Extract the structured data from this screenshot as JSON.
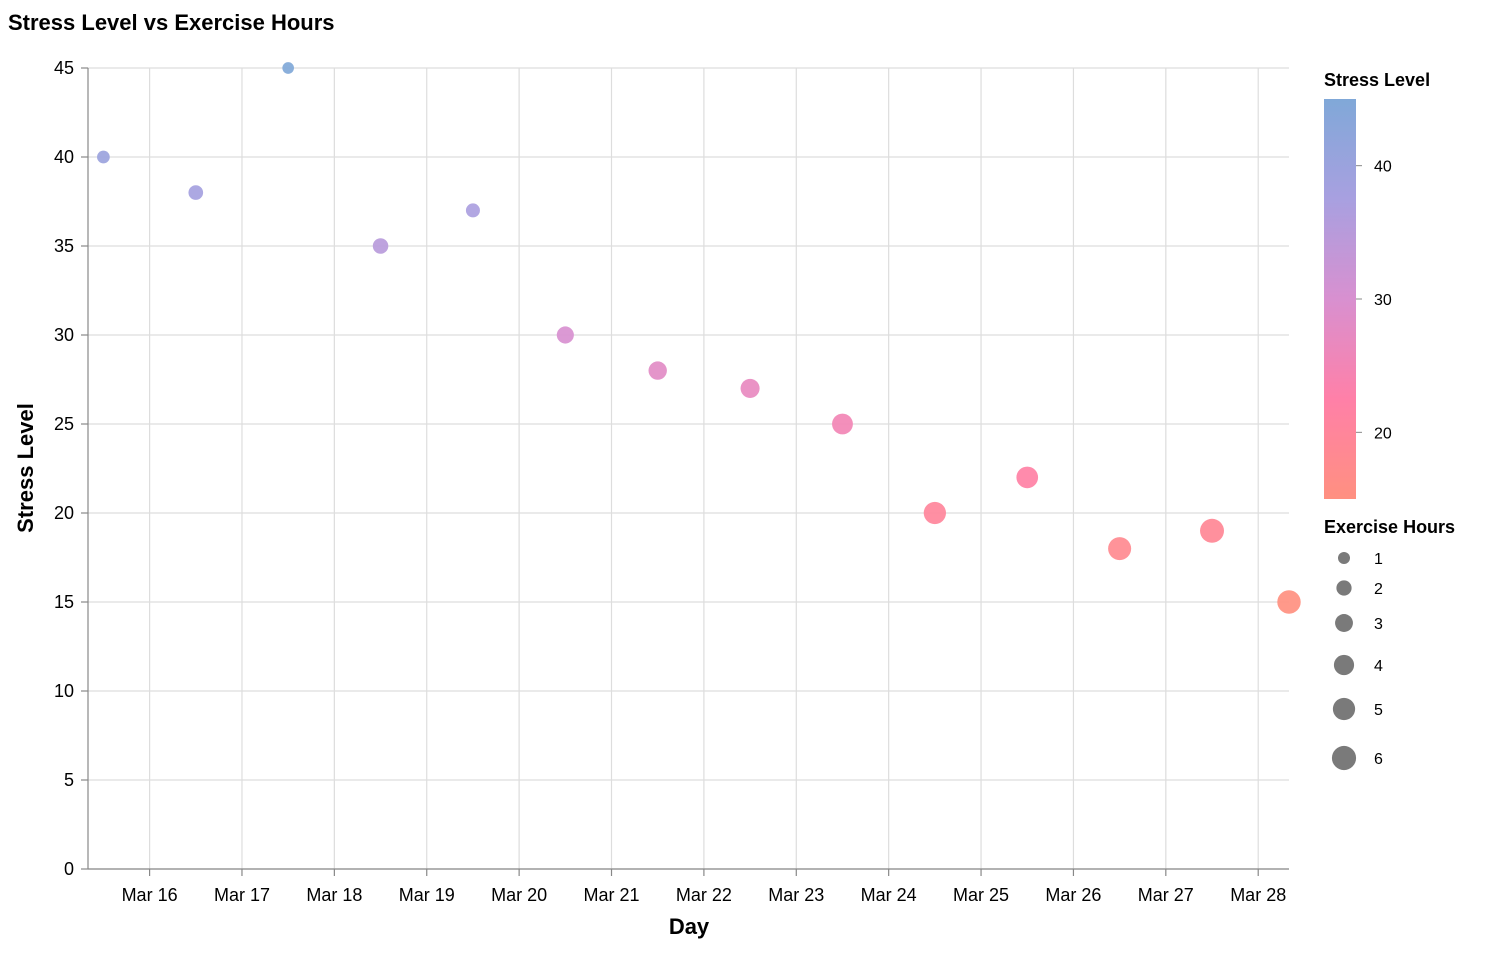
{
  "chart_data": {
    "type": "scatter",
    "title": "Stress Level vs Exercise Hours",
    "xlabel": "Day",
    "ylabel": "Stress Level",
    "x_ticks": [
      "Mar 16",
      "Mar 17",
      "Mar 18",
      "Mar 19",
      "Mar 20",
      "Mar 21",
      "Mar 22",
      "Mar 23",
      "Mar 24",
      "Mar 25",
      "Mar 26",
      "Mar 27",
      "Mar 28"
    ],
    "y_ticks": [
      "0",
      "5",
      "10",
      "15",
      "20",
      "25",
      "30",
      "35",
      "40",
      "45"
    ],
    "xlim": [
      "2023-03-15T08:00",
      "2023-03-28T08:00"
    ],
    "ylim": [
      0,
      45
    ],
    "grid": true,
    "points": [
      {
        "date": "2023-03-15",
        "stress": 40,
        "exercise": 1.2
      },
      {
        "date": "2023-03-16",
        "stress": 38,
        "exercise": 1.8
      },
      {
        "date": "2023-03-17",
        "stress": 45,
        "exercise": 0.9
      },
      {
        "date": "2023-03-18",
        "stress": 35,
        "exercise": 2.1
      },
      {
        "date": "2023-03-19",
        "stress": 37,
        "exercise": 1.6
      },
      {
        "date": "2023-03-20",
        "stress": 30,
        "exercise": 2.7
      },
      {
        "date": "2023-03-21",
        "stress": 28,
        "exercise": 3.2
      },
      {
        "date": "2023-03-22",
        "stress": 27,
        "exercise": 3.5
      },
      {
        "date": "2023-03-23",
        "stress": 25,
        "exercise": 4.3
      },
      {
        "date": "2023-03-24",
        "stress": 20,
        "exercise": 5.0
      },
      {
        "date": "2023-03-25",
        "stress": 22,
        "exercise": 4.7
      },
      {
        "date": "2023-03-26",
        "stress": 18,
        "exercise": 5.4
      },
      {
        "date": "2023-03-27",
        "stress": 19,
        "exercise": 5.9
      },
      {
        "date": "2023-03-28",
        "stress": 15,
        "exercise": 5.6
      }
    ],
    "color_legend": {
      "title": "Stress Level",
      "ticks": [
        "40",
        "30",
        "20"
      ],
      "domain": [
        15,
        45
      ],
      "colors": [
        "#ff9080",
        "#ff80a8",
        "#d890d0",
        "#a8a0e0",
        "#80a8d8"
      ]
    },
    "size_legend": {
      "title": "Exercise Hours",
      "entries": [
        {
          "label": "1",
          "value": 1
        },
        {
          "label": "2",
          "value": 2
        },
        {
          "label": "3",
          "value": 3
        },
        {
          "label": "4",
          "value": 4
        },
        {
          "label": "5",
          "value": 5
        },
        {
          "label": "6",
          "value": 6
        }
      ]
    }
  }
}
